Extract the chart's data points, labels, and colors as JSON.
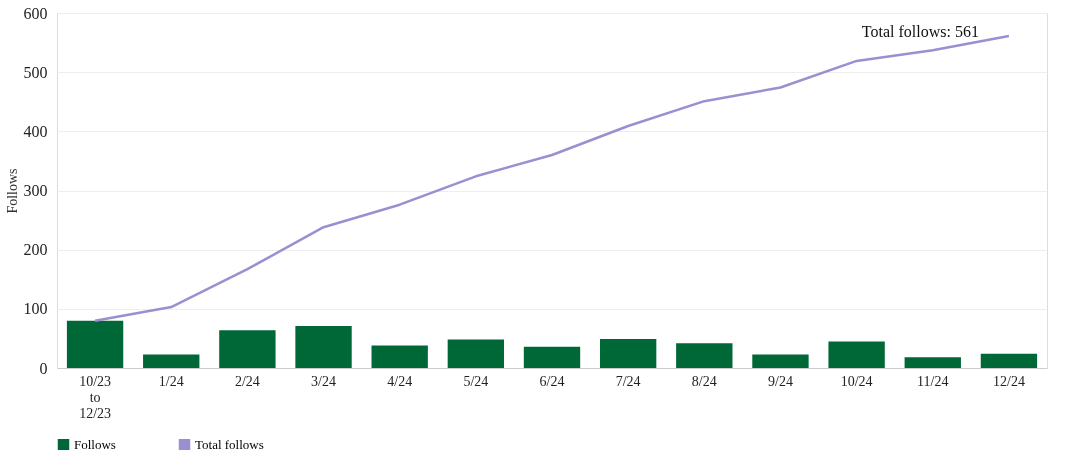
{
  "chart_data": {
    "type": "bar",
    "ylabel": "Follows",
    "categories": [
      "10/23 to 12/23",
      "1/24",
      "2/24",
      "3/24",
      "4/24",
      "5/24",
      "6/24",
      "7/24",
      "8/24",
      "9/24",
      "10/24",
      "11/24",
      "12/24"
    ],
    "series": [
      {
        "name": "Follows",
        "color": "#006837",
        "values": [
          80,
          23,
          64,
          71,
          38,
          48,
          36,
          49,
          42,
          23,
          45,
          18,
          24
        ]
      },
      {
        "name": "Total follows",
        "type": "line",
        "color": "#9b8fd1",
        "values": [
          80,
          103,
          167,
          238,
          276,
          324,
          360,
          409,
          451,
          474,
          519,
          537,
          561
        ]
      }
    ],
    "ylim": [
      0,
      600
    ],
    "yticks": [
      0,
      100,
      200,
      300,
      400,
      500,
      600
    ],
    "grid": "y",
    "legend": "bottom",
    "marker": "none",
    "line_style": "solid",
    "annotations": [
      {
        "text": "Total follows: 561",
        "x": "12/24",
        "y": 561
      }
    ]
  }
}
